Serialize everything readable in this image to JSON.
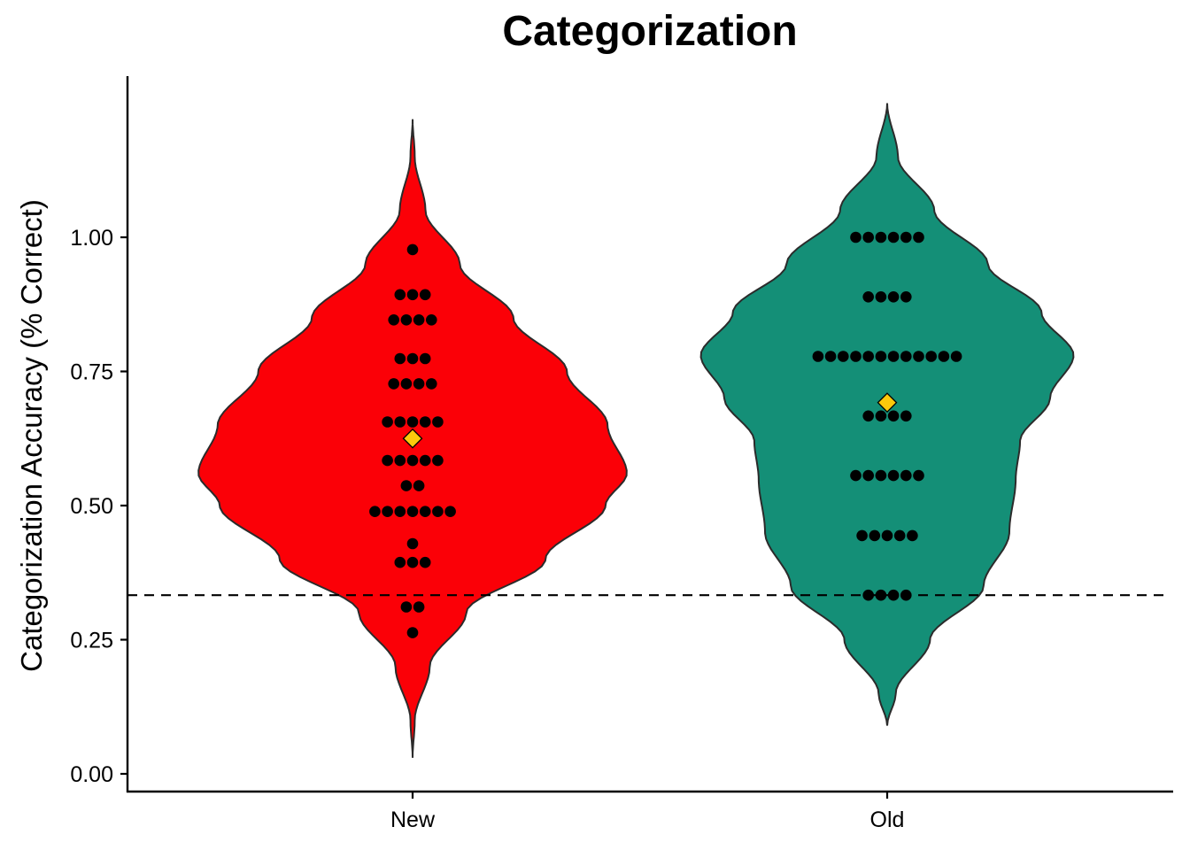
{
  "chart_data": {
    "type": "violin",
    "title": "Categorization",
    "xlabel": "",
    "ylabel": "Categorization Accuracy (% Correct)",
    "ylim": [
      0,
      1.3
    ],
    "yticks": [
      "0.00",
      "0.25",
      "0.50",
      "0.75",
      "1.00"
    ],
    "ytick_values": [
      0,
      0.25,
      0.5,
      0.75,
      1.0
    ],
    "categories": [
      "New",
      "Old"
    ],
    "reference_line": {
      "y": 0.333,
      "style": "dashed"
    },
    "grid": false,
    "legend": "none",
    "series": [
      {
        "category": "New",
        "color": "#fb0007",
        "mean": 0.625,
        "violin_range": [
          0.03,
          1.22
        ],
        "density": [
          [
            0.03,
            0.0
          ],
          [
            0.1,
            0.01
          ],
          [
            0.2,
            0.08
          ],
          [
            0.3,
            0.25
          ],
          [
            0.4,
            0.62
          ],
          [
            0.5,
            0.9
          ],
          [
            0.56,
            1.0
          ],
          [
            0.65,
            0.91
          ],
          [
            0.75,
            0.72
          ],
          [
            0.85,
            0.47
          ],
          [
            0.95,
            0.22
          ],
          [
            1.05,
            0.06
          ],
          [
            1.15,
            0.01
          ],
          [
            1.22,
            0.0
          ]
        ],
        "points": [
          {
            "y": 0.977,
            "n": 1
          },
          {
            "y": 0.893,
            "n": 3
          },
          {
            "y": 0.846,
            "n": 4
          },
          {
            "y": 0.774,
            "n": 3
          },
          {
            "y": 0.727,
            "n": 4
          },
          {
            "y": 0.656,
            "n": 5
          },
          {
            "y": 0.584,
            "n": 5
          },
          {
            "y": 0.537,
            "n": 2
          },
          {
            "y": 0.489,
            "n": 7
          },
          {
            "y": 0.429,
            "n": 1
          },
          {
            "y": 0.394,
            "n": 3
          },
          {
            "y": 0.311,
            "n": 2
          },
          {
            "y": 0.263,
            "n": 1
          }
        ]
      },
      {
        "category": "Old",
        "color": "#148f77",
        "mean": 0.692,
        "violin_range": [
          0.09,
          1.25
        ],
        "density": [
          [
            0.09,
            0.0
          ],
          [
            0.15,
            0.04
          ],
          [
            0.25,
            0.2
          ],
          [
            0.35,
            0.45
          ],
          [
            0.45,
            0.57
          ],
          [
            0.55,
            0.6
          ],
          [
            0.62,
            0.62
          ],
          [
            0.7,
            0.76
          ],
          [
            0.78,
            0.87
          ],
          [
            0.86,
            0.72
          ],
          [
            0.95,
            0.47
          ],
          [
            1.05,
            0.22
          ],
          [
            1.15,
            0.05
          ],
          [
            1.25,
            0.0
          ]
        ],
        "points": [
          {
            "y": 1.0,
            "n": 6
          },
          {
            "y": 0.889,
            "n": 4
          },
          {
            "y": 0.778,
            "n": 12
          },
          {
            "y": 0.667,
            "n": 4
          },
          {
            "y": 0.556,
            "n": 6
          },
          {
            "y": 0.444,
            "n": 5
          },
          {
            "y": 0.333,
            "n": 4
          }
        ]
      }
    ]
  }
}
